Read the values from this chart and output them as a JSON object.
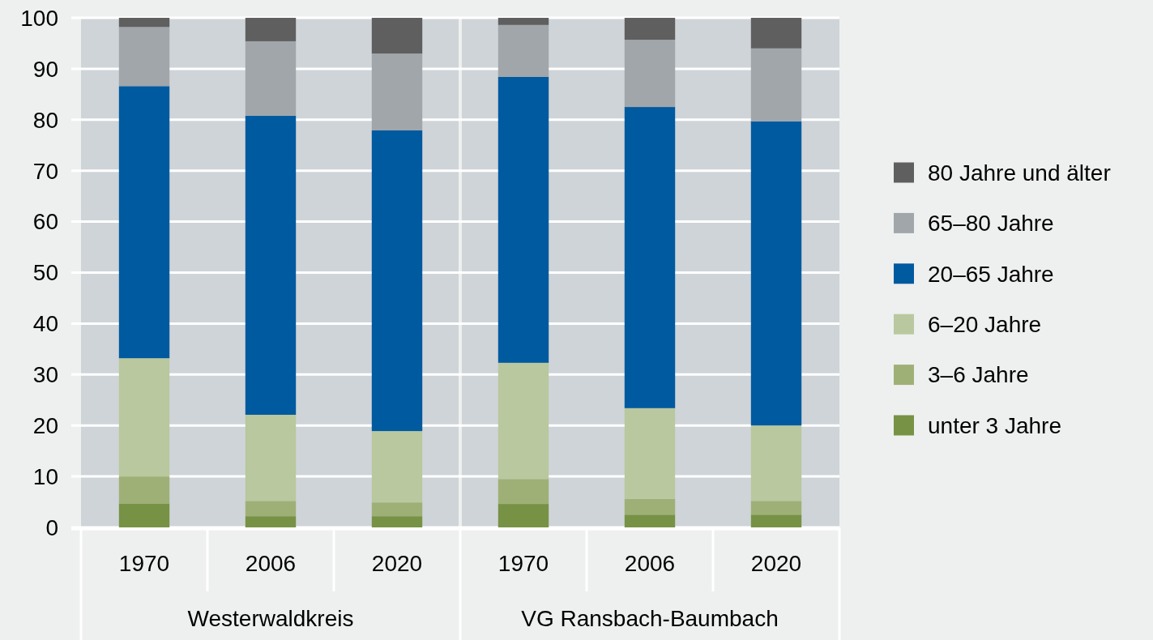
{
  "chart_data": {
    "type": "bar",
    "stacked": true,
    "categories": [
      "1970",
      "2006",
      "2020",
      "1970",
      "2006",
      "2020"
    ],
    "annotations": [
      "Westerwaldkreis",
      "VG Ransbach-Baumbach"
    ],
    "series": [
      {
        "name": "unter 3 Jahre",
        "color": "#779245",
        "values": [
          4.7,
          2.2,
          2.2,
          4.6,
          2.5,
          2.5
        ]
      },
      {
        "name": "3–6 Jahre",
        "color": "#9fb076",
        "values": [
          5.3,
          3.0,
          2.7,
          4.9,
          3.1,
          2.7
        ]
      },
      {
        "name": "6–20 Jahre",
        "color": "#b9c89e",
        "values": [
          23.2,
          16.9,
          14.0,
          22.8,
          17.8,
          14.8
        ]
      },
      {
        "name": "20–65 Jahre",
        "color": "#005a9f",
        "values": [
          53.4,
          58.7,
          59.0,
          56.1,
          59.1,
          59.7
        ]
      },
      {
        "name": "65–80 Jahre",
        "color": "#a1a6aa",
        "values": [
          11.6,
          14.6,
          15.1,
          10.2,
          13.2,
          14.3
        ]
      },
      {
        "name": "80 Jahre und älter",
        "color": "#5f5f5f",
        "values": [
          1.8,
          4.6,
          7.0,
          1.4,
          4.3,
          6.0
        ]
      }
    ],
    "ylim": [
      0,
      100
    ],
    "yticks": [
      0,
      10,
      20,
      30,
      40,
      50,
      60,
      70,
      80,
      90,
      100
    ],
    "grid": "y",
    "legend": "right"
  }
}
